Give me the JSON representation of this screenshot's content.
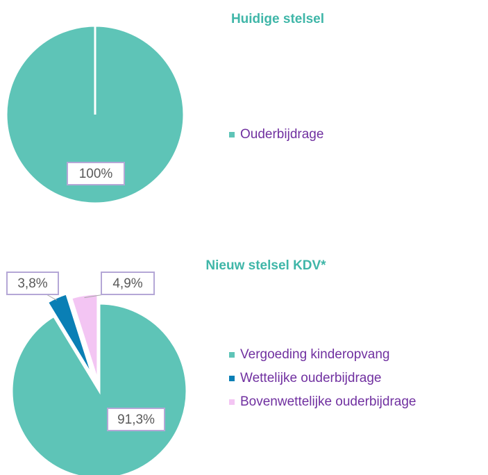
{
  "chart_data": [
    {
      "type": "pie",
      "title": "Huidige stelsel",
      "categories": [
        "Ouderbijdrage"
      ],
      "values": [
        100
      ],
      "value_labels": [
        "100%"
      ],
      "colors": [
        "#5ec4b7"
      ]
    },
    {
      "type": "pie",
      "title": "Nieuw stelsel KDV*",
      "categories": [
        "Vergoeding kinderopvang",
        "Wettelijke ouderbijdrage",
        "Bovenwettelijke ouderbijdrage"
      ],
      "values": [
        91.3,
        3.8,
        4.9
      ],
      "value_labels": [
        "91,3%",
        "3,8%",
        "4,9%"
      ],
      "colors": [
        "#5ec4b7",
        "#0a7fb5",
        "#f3c5f3"
      ]
    }
  ]
}
